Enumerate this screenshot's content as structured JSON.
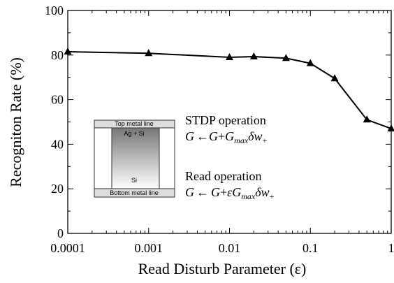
{
  "chart_data": {
    "type": "line",
    "x_label": "Read Disturb Parameter (ε)",
    "y_label": "Recogniton Rate (%)",
    "x": [
      0.0001,
      0.001,
      0.01,
      0.02,
      0.05,
      0.1,
      0.2,
      0.5,
      1
    ],
    "values": [
      81.5,
      80.8,
      79,
      79.3,
      78.6,
      76.3,
      69.5,
      51,
      47
    ],
    "color": "#000000",
    "marker": "triangle",
    "xscale": "log",
    "xlim": [
      0.0001,
      1
    ],
    "xticks": [
      0.0001,
      0.001,
      0.01,
      0.1,
      1
    ],
    "ylim": [
      0,
      100
    ],
    "yticks": [
      0,
      20,
      40,
      60,
      80,
      100
    ],
    "annotations": {
      "top_metal": "Top metal line",
      "ag_si": "Ag + Si",
      "si": "Si",
      "bottom_metal": "Bottom metal line",
      "stdp_label": "STDP operation",
      "stdp_formula": [
        "G",
        "←",
        "G",
        "+",
        "G",
        "max",
        "δw",
        "+"
      ],
      "read_label": "Read operation",
      "read_formula": [
        "G",
        "←",
        "G",
        "+",
        "εG",
        "max",
        "δw",
        "+"
      ]
    }
  }
}
